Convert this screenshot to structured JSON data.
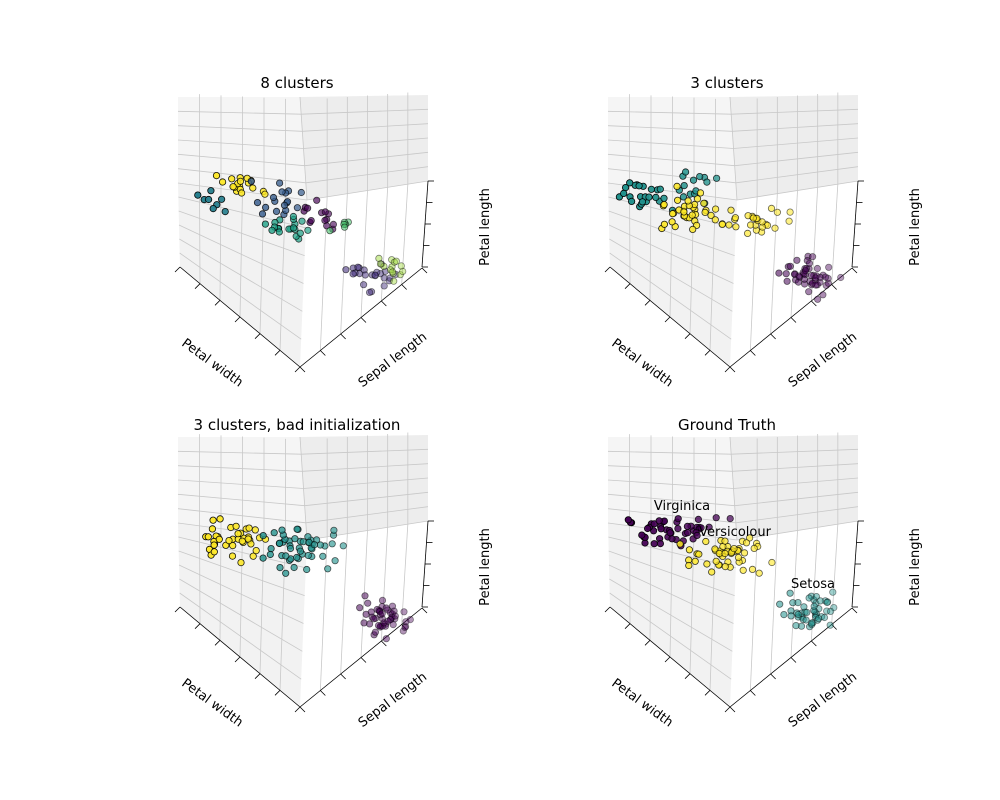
{
  "chart_data": [
    {
      "type": "scatter",
      "title": "8 clusters",
      "xlabel": "Petal width",
      "ylabel": "Sepal length",
      "zlabel": "Petal length",
      "ticklabels_shown": false,
      "grid": true,
      "view": {
        "elev": 48,
        "azim": 134
      },
      "cluster_colors": [
        "#440154",
        "#46327e",
        "#365c8d",
        "#277f8e",
        "#1fa187",
        "#4ac16d",
        "#a0da39",
        "#fde725"
      ]
    },
    {
      "type": "scatter",
      "title": "3 clusters",
      "xlabel": "Petal width",
      "ylabel": "Sepal length",
      "zlabel": "Petal length",
      "ticklabels_shown": false,
      "grid": true,
      "view": {
        "elev": 48,
        "azim": 134
      },
      "cluster_colors": [
        "#440154",
        "#21918c",
        "#fde725"
      ]
    },
    {
      "type": "scatter",
      "title": "3 clusters, bad initialization",
      "xlabel": "Petal width",
      "ylabel": "Sepal length",
      "zlabel": "Petal length",
      "ticklabels_shown": false,
      "grid": true,
      "view": {
        "elev": 48,
        "azim": 134
      },
      "cluster_colors": [
        "#440154",
        "#21918c",
        "#fde725"
      ]
    },
    {
      "type": "scatter",
      "title": "Ground Truth",
      "xlabel": "Petal width",
      "ylabel": "Sepal length",
      "zlabel": "Petal length",
      "ticklabels_shown": false,
      "grid": true,
      "view": {
        "elev": 48,
        "azim": 134
      },
      "cluster_colors": [
        "#440154",
        "#21918c",
        "#fde725"
      ],
      "annotations": [
        "Setosa",
        "Versicolour",
        "Virginica"
      ]
    }
  ]
}
